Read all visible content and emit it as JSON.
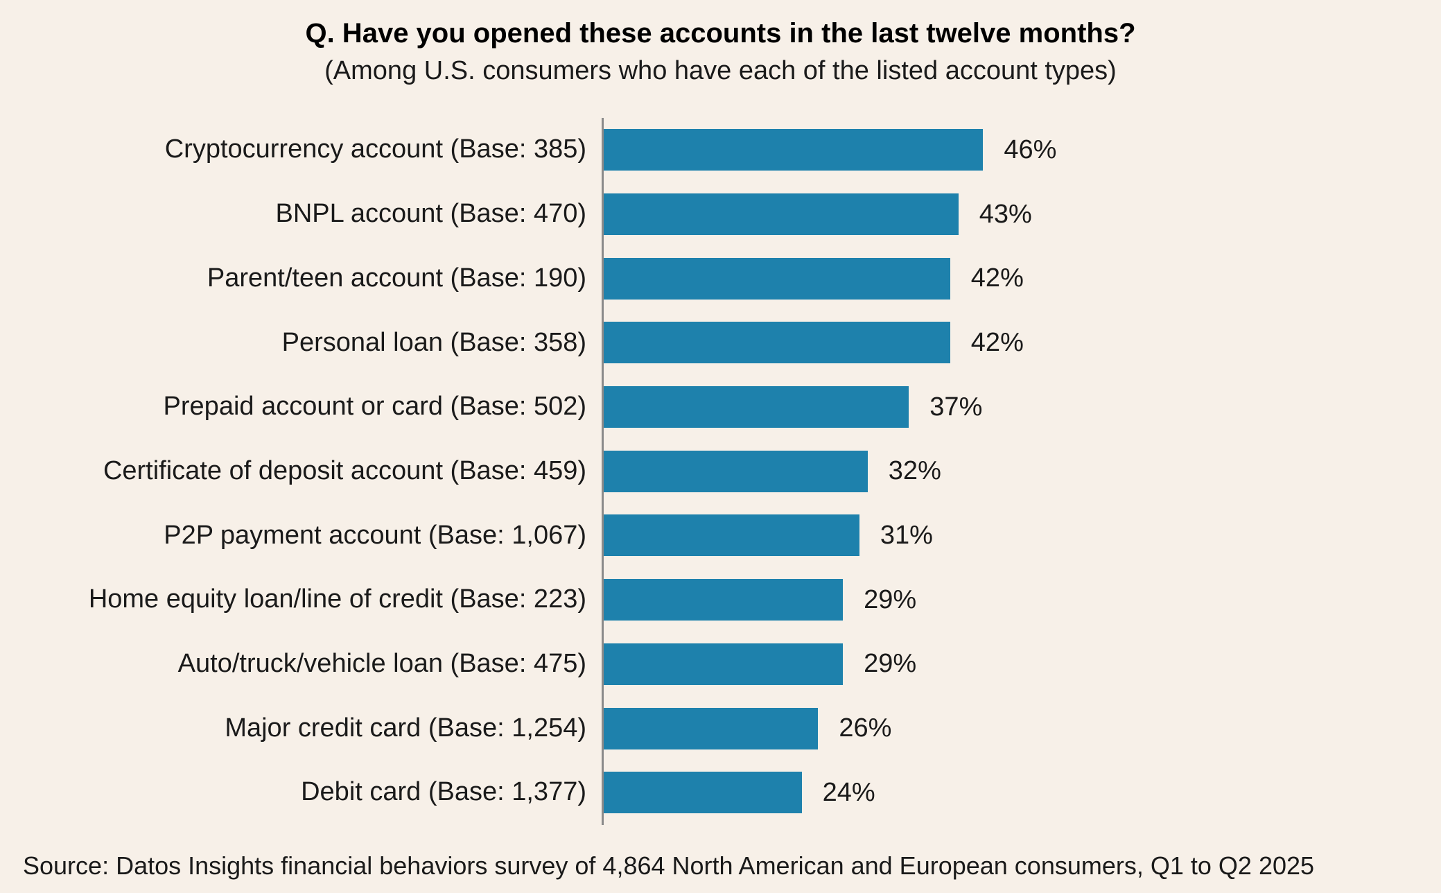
{
  "title": "Q. Have you opened these accounts in the last twelve months?",
  "subtitle": "(Among U.S. consumers who have each of the listed account types)",
  "source": "Source: Datos Insights financial behaviors survey of 4,864 North American and European consumers, Q1 to Q2 2025",
  "colors": {
    "bar": "#1e81ac",
    "background": "#f7f0e8",
    "axis": "#8a8a8a",
    "text": "#1a1a1a"
  },
  "chart_data": {
    "type": "bar",
    "orientation": "horizontal",
    "title": "Q. Have you opened these accounts in the last twelve months?",
    "subtitle": "(Among U.S. consumers who have each of the listed account types)",
    "categories": [
      "Cryptocurrency account (Base: 385)",
      "BNPL account (Base: 470)",
      "Parent/teen account (Base: 190)",
      "Personal loan (Base: 358)",
      "Prepaid account or card (Base: 502)",
      "Certificate of deposit account (Base: 459)",
      "P2P payment account (Base: 1,067)",
      "Home equity loan/line of credit (Base: 223)",
      "Auto/truck/vehicle loan (Base: 475)",
      "Major credit card (Base: 1,254)",
      "Debit card (Base: 1,377)"
    ],
    "values": [
      46,
      43,
      42,
      42,
      37,
      32,
      31,
      29,
      29,
      26,
      24
    ],
    "value_labels": [
      "46%",
      "43%",
      "42%",
      "42%",
      "37%",
      "32%",
      "31%",
      "29%",
      "29%",
      "26%",
      "24%"
    ],
    "xlabel": "",
    "ylabel": "",
    "xlim": [
      0,
      50
    ],
    "grid": false,
    "legend": "none",
    "sort_order": "descending",
    "data_label_position": "outside-right"
  }
}
